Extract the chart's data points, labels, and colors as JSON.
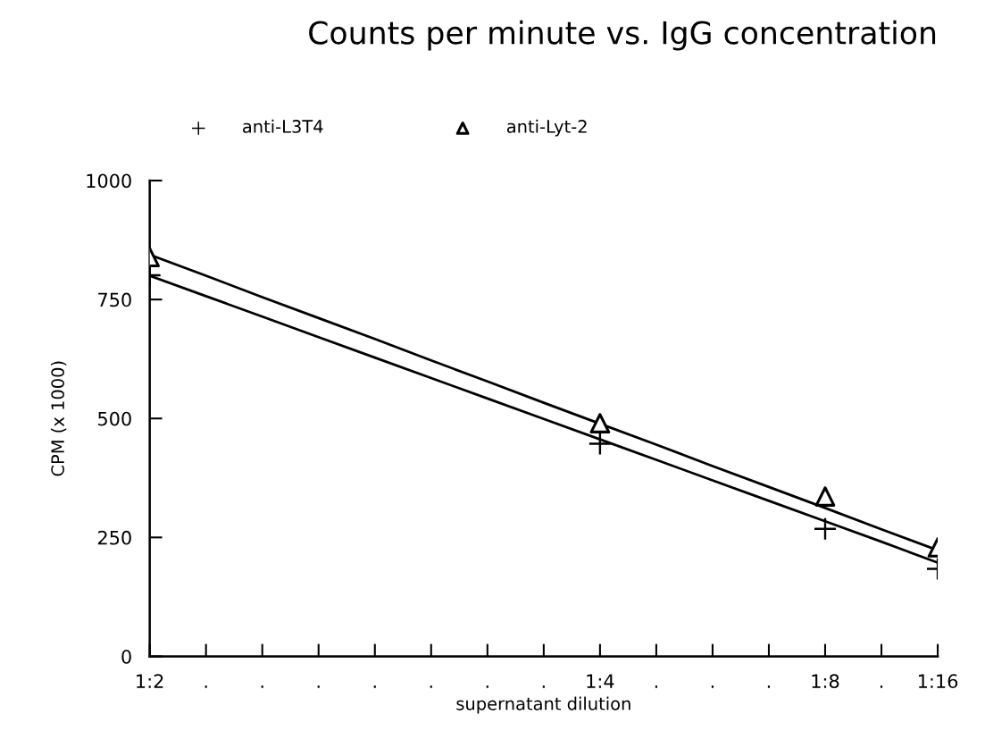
{
  "chart_data": {
    "type": "line",
    "title": "Counts per minute vs. IgG concentration",
    "xlabel": "supernatant dilution",
    "ylabel": "CPM (x 1000)",
    "categories": [
      "1:2",
      ".",
      ".",
      ".",
      ".",
      ".",
      ".",
      ".",
      "1:4",
      ".",
      ".",
      ".",
      "1:8",
      ".",
      "1:16"
    ],
    "ylim": [
      0,
      1000
    ],
    "yticks": [
      0,
      250,
      500,
      750,
      1000
    ],
    "grid": false,
    "legend": "top",
    "series": [
      {
        "name": "anti-L3T4",
        "type": "scatter",
        "marker": "cross",
        "color": "#000000",
        "values": [
          801,
          null,
          null,
          null,
          null,
          null,
          null,
          null,
          447,
          null,
          null,
          null,
          268,
          null,
          184
        ]
      },
      {
        "name": "anti-Lyt-2",
        "type": "scatter",
        "marker": "triangle",
        "color": "#000000",
        "values": [
          839,
          null,
          null,
          null,
          null,
          null,
          null,
          null,
          490,
          null,
          null,
          null,
          336,
          null,
          229
        ]
      },
      {
        "marker": "none",
        "line_style": "solid",
        "color": "#000000",
        "values": [
          800,
          757,
          714,
          671,
          628,
          585,
          542,
          499,
          456,
          413,
          370,
          327,
          284,
          241,
          197
        ]
      },
      {
        "marker": "none",
        "line_style": "solid",
        "color": "#000000",
        "values": [
          844,
          800,
          755,
          711,
          667,
          622,
          578,
          533,
          489,
          445,
          400,
          356,
          312,
          267,
          223
        ]
      }
    ]
  }
}
